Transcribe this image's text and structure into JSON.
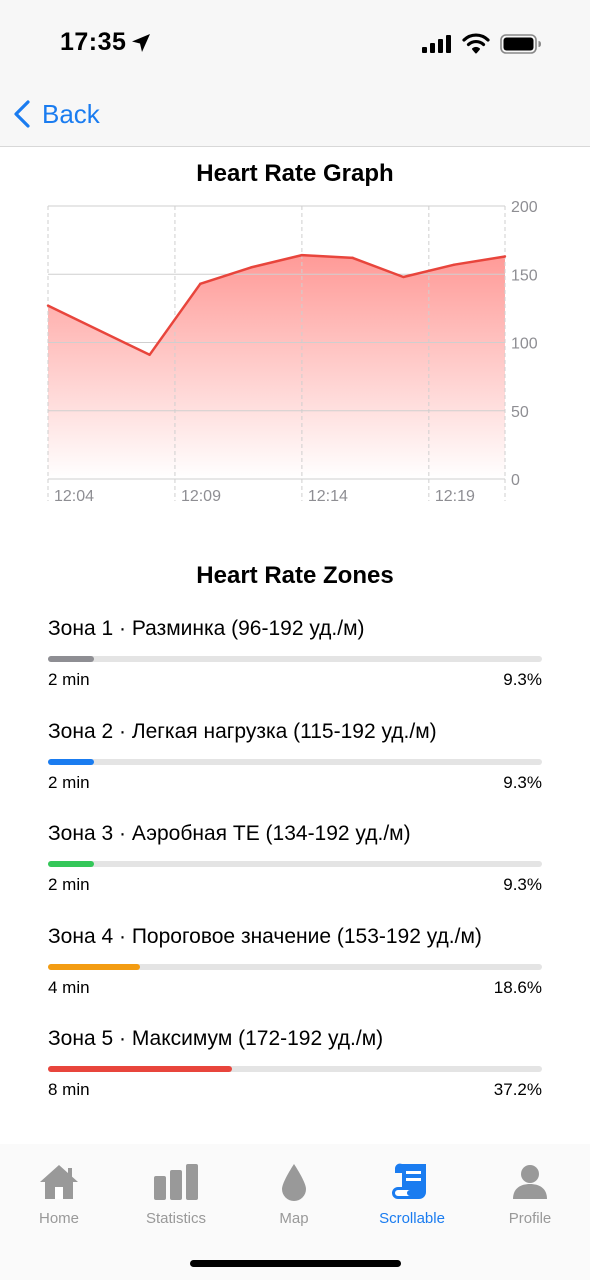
{
  "status": {
    "time": "17:35",
    "icons": [
      "location-arrow-icon",
      "signal-bars-icon",
      "wifi-icon",
      "battery-icon"
    ]
  },
  "nav": {
    "back_label": "Back"
  },
  "graph": {
    "title": "Heart Rate Graph"
  },
  "chart_data": {
    "type": "area",
    "title": "Heart Rate Graph",
    "x_ticks": [
      "12:04",
      "12:09",
      "12:14",
      "12:19"
    ],
    "y_ticks": [
      0,
      50,
      100,
      150,
      200
    ],
    "ylim": [
      0,
      200
    ],
    "x_minutes": [
      0,
      4,
      6,
      8,
      10,
      12,
      14,
      16,
      18
    ],
    "values": [
      127,
      91,
      143,
      155,
      164,
      162,
      148,
      157,
      163
    ],
    "line_color": "#e8453c",
    "fill_color": "#ff9a97",
    "grid": true,
    "y_axis_position": "right"
  },
  "zones": {
    "title": "Heart Rate Zones",
    "items": [
      {
        "label": "Зона 1 · Разминка (96-192 уд./м)",
        "time": "2 min",
        "percent_label": "9.3%",
        "percent": 9.3,
        "color": "#8e8e93"
      },
      {
        "label": "Зона 2 · Легкая нагрузка (115-192 уд./м)",
        "time": "2 min",
        "percent_label": "9.3%",
        "percent": 9.3,
        "color": "#1a7cf0"
      },
      {
        "label": "Зона 3 · Аэробная ТЕ (134-192 уд./м)",
        "time": "2 min",
        "percent_label": "9.3%",
        "percent": 9.3,
        "color": "#34c759"
      },
      {
        "label": "Зона 4 · Пороговое значение (153-192 уд./м)",
        "time": "4 min",
        "percent_label": "18.6%",
        "percent": 18.6,
        "color": "#f39c12"
      },
      {
        "label": "Зона 5 · Максимум (172-192 уд./м)",
        "time": "8 min",
        "percent_label": "37.2%",
        "percent": 37.2,
        "color": "#e8453c"
      }
    ]
  },
  "tabs": [
    {
      "label": "Home",
      "icon": "house-icon",
      "active": false
    },
    {
      "label": "Statistics",
      "icon": "bar-chart-icon",
      "active": false
    },
    {
      "label": "Map",
      "icon": "drop-icon",
      "active": false
    },
    {
      "label": "Scrollable",
      "icon": "scroll-icon",
      "active": true
    },
    {
      "label": "Profile",
      "icon": "person-icon",
      "active": false
    }
  ],
  "colors": {
    "accent": "#1a7cf0",
    "inactive": "#999999"
  }
}
